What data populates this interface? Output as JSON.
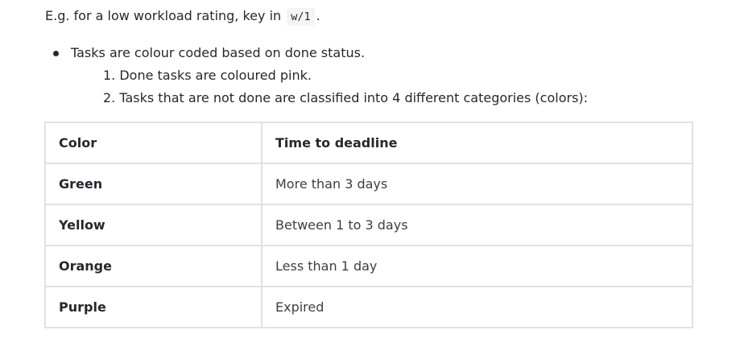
{
  "intro": {
    "before": "E.g. for a low workload rating, key in",
    "code": "w/1",
    "after": "."
  },
  "bullet": {
    "text": "Tasks are colour coded based on done status.",
    "subitems": [
      "1. Done tasks are coloured pink.",
      "2. Tasks that are not done are classified into 4 different categories (colors):"
    ]
  },
  "table": {
    "headers": [
      "Color",
      "Time to deadline"
    ],
    "rows": [
      [
        "Green",
        "More than 3 days"
      ],
      [
        "Yellow",
        "Between 1 to 3 days"
      ],
      [
        "Orange",
        "Less than 1 day"
      ],
      [
        "Purple",
        "Expired"
      ]
    ]
  }
}
